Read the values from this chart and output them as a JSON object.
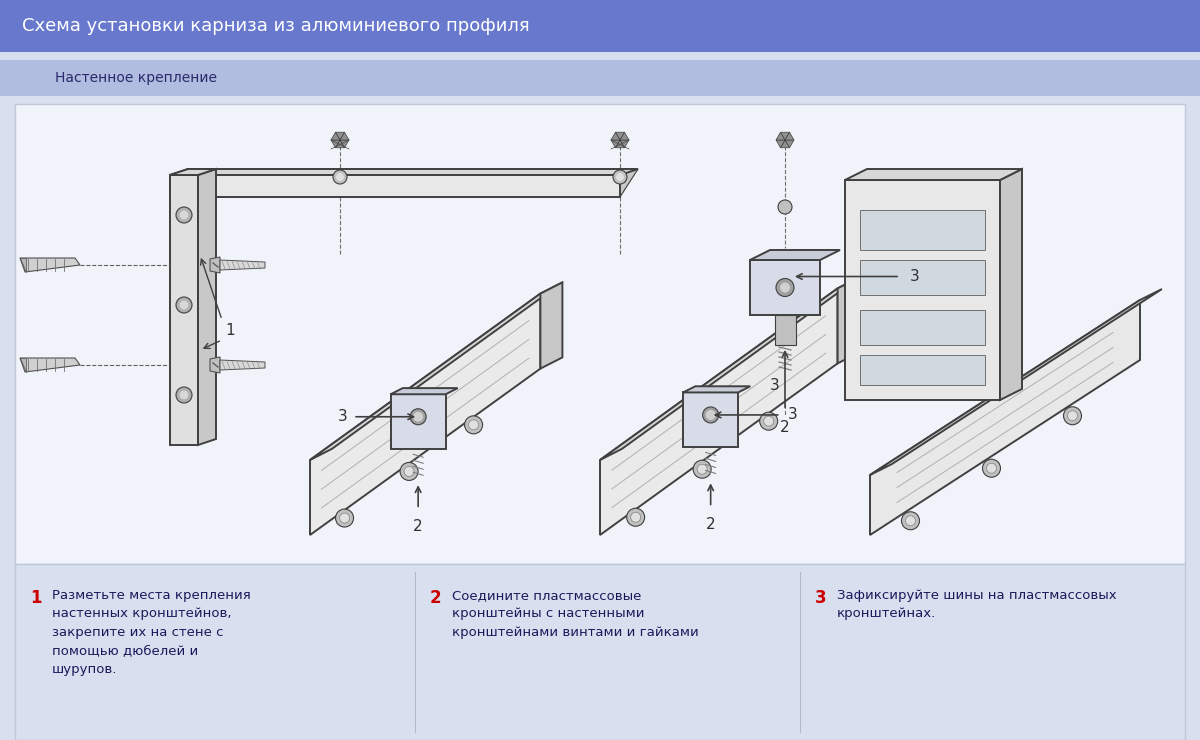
{
  "title": "Схема установки карниза из алюминиевого профиля",
  "subtitle": "Настенное крепление",
  "title_bg": "#6878cc",
  "subtitle_bg": "#b0bce0",
  "main_bg": "#d8e0f0",
  "title_color": "#ffffff",
  "subtitle_color": "#2a2a6a",
  "step1_num": "1",
  "step1_text": "Разметьте места крепления\nнастенных кронштейнов,\nзакрепите их на стене с\nпомощью дюбелей и\nшурупов.",
  "step2_num": "2",
  "step2_text": "Соедините пластмассовые\nкронштейны с настенными\nкронштейнами винтами и гайками",
  "step3_num": "3",
  "step3_text": "Зафиксируйте шины на пластмассовых\nкронштейнах.",
  "num_color": "#cc0000",
  "text_color": "#1a1a5a",
  "title_fontsize": 13,
  "subtitle_fontsize": 10,
  "step_fontsize": 9.5
}
